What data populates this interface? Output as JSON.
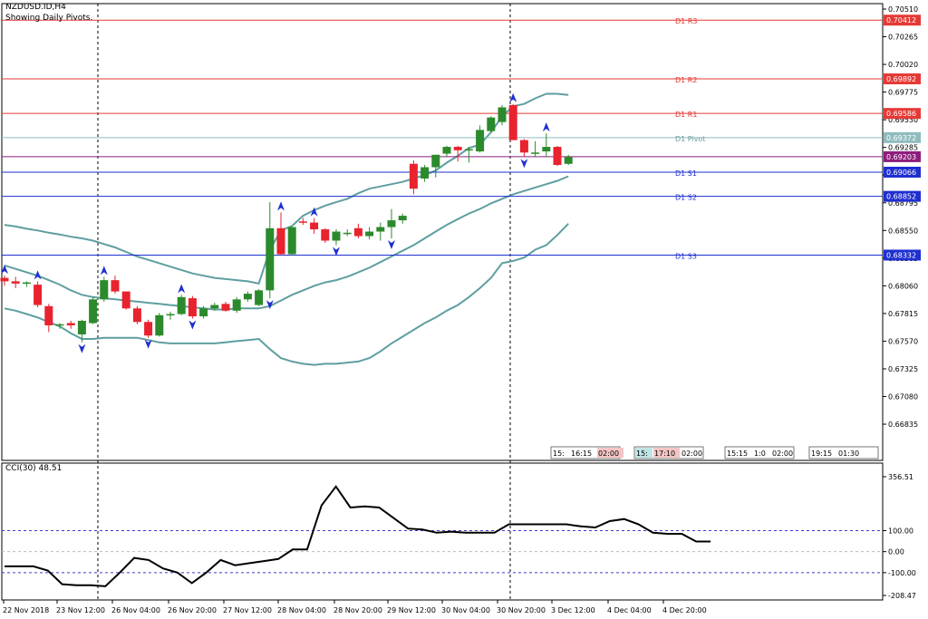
{
  "header": {
    "symbol": "NZDUSD.ID,H4",
    "subtitle": "Showing Daily Pivots."
  },
  "indicator": {
    "title": "CCI(30) 48.51"
  },
  "time_labels": [
    "22 Nov 2018",
    "23 Nov 12:00",
    "26 Nov 04:00",
    "26 Nov 20:00",
    "27 Nov 12:00",
    "28 Nov 04:00",
    "28 Nov 20:00",
    "29 Nov 12:00",
    "30 Nov 04:00",
    "30 Nov 20:00",
    "3 Dec 12:00",
    "4 Dec 04:00",
    "4 Dec 20:00"
  ],
  "session_boxes": [
    {
      "a": "15:",
      "b": "16:15",
      "c": "02:00"
    },
    {
      "a": "15:",
      "b": "17:10",
      "c": "02:00"
    },
    {
      "a": "15:15",
      "b": "1:0",
      "c": "02:00"
    },
    {
      "a": "19:15",
      "b": "01:30",
      "c": ""
    }
  ],
  "colors": {
    "bull": "#2b8a2b",
    "bear": "#e8232e",
    "band": "#5f9ea0",
    "resistance": "#e53935",
    "support": "#1f2fd0",
    "pivot": "#8fbcbf",
    "current": "#8e1d7c",
    "cci": "#000000"
  },
  "chart_data": [
    {
      "type": "candlestick",
      "title": "NZDUSD.ID,H4",
      "subtitle": "Showing Daily Pivots.",
      "ylim": [
        0.66683,
        0.7051
      ],
      "yticks": [
        "0.70510",
        "0.70265",
        "0.70020",
        "0.69775",
        "0.69530",
        "0.69285",
        "0.69040",
        "0.68795",
        "0.68550",
        "0.68305",
        "0.68060",
        "0.67815",
        "0.67570",
        "0.67325",
        "0.67080",
        "0.66835"
      ],
      "levels": [
        {
          "name": "D1 R3",
          "value": 0.70412,
          "label": "0.70412",
          "kind": "resistance"
        },
        {
          "name": "D1 R2",
          "value": 0.69892,
          "label": "0.69892",
          "kind": "resistance"
        },
        {
          "name": "D1 R1",
          "value": 0.69586,
          "label": "0.69586",
          "kind": "resistance"
        },
        {
          "name": "D1 Pivot",
          "value": 0.69372,
          "label": "0.69372",
          "kind": "pivot"
        },
        {
          "name": "",
          "value": 0.69203,
          "label": "0.69203",
          "kind": "current"
        },
        {
          "name": "D1 S1",
          "value": 0.69066,
          "label": "0.69066",
          "kind": "support"
        },
        {
          "name": "D1 S2",
          "value": 0.68852,
          "label": "0.68852",
          "kind": "support"
        },
        {
          "name": "D1 S3",
          "value": 0.68332,
          "label": "0.68332",
          "kind": "support"
        }
      ],
      "candles": [
        [
          0.6813,
          0.6815,
          0.6806,
          0.681
        ],
        [
          0.681,
          0.6814,
          0.6804,
          0.6808
        ],
        [
          0.6808,
          0.681,
          0.6805,
          0.6809
        ],
        [
          0.6807,
          0.681,
          0.6787,
          0.6789
        ],
        [
          0.6788,
          0.679,
          0.6765,
          0.6771
        ],
        [
          0.6771,
          0.6773,
          0.6768,
          0.6772
        ],
        [
          0.6773,
          0.6775,
          0.6768,
          0.6771
        ],
        [
          0.6763,
          0.6776,
          0.6756,
          0.6775
        ],
        [
          0.6773,
          0.6796,
          0.6772,
          0.6794
        ],
        [
          0.6794,
          0.6814,
          0.6792,
          0.6811
        ],
        [
          0.6811,
          0.6815,
          0.6799,
          0.6801
        ],
        [
          0.6801,
          0.6801,
          0.6785,
          0.6786
        ],
        [
          0.6786,
          0.6788,
          0.6772,
          0.6774
        ],
        [
          0.6774,
          0.6776,
          0.676,
          0.6762
        ],
        [
          0.6762,
          0.6782,
          0.6761,
          0.678
        ],
        [
          0.678,
          0.6783,
          0.6776,
          0.6781
        ],
        [
          0.6781,
          0.6798,
          0.678,
          0.6796
        ],
        [
          0.6795,
          0.6797,
          0.6777,
          0.6779
        ],
        [
          0.6779,
          0.6788,
          0.6777,
          0.6786
        ],
        [
          0.6786,
          0.6791,
          0.6784,
          0.6789
        ],
        [
          0.679,
          0.6792,
          0.6783,
          0.6784
        ],
        [
          0.6784,
          0.6796,
          0.6782,
          0.6794
        ],
        [
          0.6794,
          0.6801,
          0.6792,
          0.6799
        ],
        [
          0.6789,
          0.6803,
          0.6788,
          0.6802
        ],
        [
          0.6802,
          0.688,
          0.6795,
          0.6857
        ],
        [
          0.6857,
          0.6871,
          0.6833,
          0.6834
        ],
        [
          0.6834,
          0.6858,
          0.6833,
          0.6858
        ],
        [
          0.6863,
          0.6866,
          0.686,
          0.6862
        ],
        [
          0.6862,
          0.6866,
          0.6852,
          0.6856
        ],
        [
          0.6856,
          0.6857,
          0.6844,
          0.6846
        ],
        [
          0.6846,
          0.6856,
          0.6842,
          0.6854
        ],
        [
          0.6853,
          0.6856,
          0.685,
          0.6853
        ],
        [
          0.6857,
          0.6861,
          0.6848,
          0.685
        ],
        [
          0.685,
          0.6858,
          0.6847,
          0.6854
        ],
        [
          0.6854,
          0.6862,
          0.6846,
          0.6858
        ],
        [
          0.6858,
          0.6874,
          0.6848,
          0.6864
        ],
        [
          0.6864,
          0.687,
          0.6861,
          0.6868
        ],
        [
          0.6914,
          0.6917,
          0.6887,
          0.6892
        ],
        [
          0.6901,
          0.6913,
          0.6898,
          0.6911
        ],
        [
          0.6911,
          0.6922,
          0.6902,
          0.6922
        ],
        [
          0.6923,
          0.693,
          0.692,
          0.6929
        ],
        [
          0.6929,
          0.693,
          0.6916,
          0.6926
        ],
        [
          0.6926,
          0.6929,
          0.6915,
          0.6927
        ],
        [
          0.6925,
          0.6948,
          0.6924,
          0.6944
        ],
        [
          0.6943,
          0.6956,
          0.6942,
          0.6955
        ],
        [
          0.6951,
          0.6966,
          0.6948,
          0.6964
        ],
        [
          0.6966,
          0.6967,
          0.6935,
          0.6935
        ],
        [
          0.6935,
          0.6936,
          0.692,
          0.6924
        ],
        [
          0.6924,
          0.6934,
          0.692,
          0.6924
        ],
        [
          0.6925,
          0.6941,
          0.692,
          0.6929
        ],
        [
          0.6929,
          0.693,
          0.6912,
          0.6913
        ],
        [
          0.6914,
          0.6922,
          0.6913,
          0.692
        ]
      ],
      "bands": {
        "upper": [
          0.686,
          0.68585,
          0.68565,
          0.6855,
          0.6853,
          0.68515,
          0.68495,
          0.6848,
          0.6846,
          0.6843,
          0.684,
          0.6836,
          0.6832,
          0.6829,
          0.6826,
          0.6823,
          0.682,
          0.6817,
          0.6815,
          0.6813,
          0.6812,
          0.6811,
          0.681,
          0.6808,
          0.6838,
          0.6855,
          0.6859,
          0.6868,
          0.6873,
          0.6877,
          0.688,
          0.6883,
          0.6888,
          0.6892,
          0.6894,
          0.6896,
          0.6898,
          0.6901,
          0.6904,
          0.6908,
          0.6915,
          0.6921,
          0.6928,
          0.6931,
          0.6942,
          0.6956,
          0.6965,
          0.6967,
          0.6972,
          0.6976,
          0.6976,
          0.6975
        ],
        "middle": [
          0.6824,
          0.6821,
          0.6818,
          0.6815,
          0.6811,
          0.6807,
          0.6802,
          0.6798,
          0.6796,
          0.6795,
          0.6794,
          0.6793,
          0.6792,
          0.6791,
          0.679,
          0.6789,
          0.6788,
          0.6787,
          0.6786,
          0.6785,
          0.6785,
          0.6786,
          0.6786,
          0.6786,
          0.6788,
          0.6793,
          0.6798,
          0.6802,
          0.6806,
          0.6809,
          0.6811,
          0.6814,
          0.6818,
          0.6822,
          0.6827,
          0.6832,
          0.6837,
          0.6842,
          0.6848,
          0.6854,
          0.686,
          0.6865,
          0.687,
          0.6874,
          0.6879,
          0.6883,
          0.6887,
          0.689,
          0.6893,
          0.6896,
          0.6899,
          0.6903
        ],
        "lower": [
          0.6786,
          0.6784,
          0.6781,
          0.6778,
          0.6774,
          0.677,
          0.6764,
          0.6759,
          0.6759,
          0.676,
          0.676,
          0.676,
          0.676,
          0.6758,
          0.6756,
          0.6755,
          0.6755,
          0.6755,
          0.6755,
          0.6755,
          0.6756,
          0.6757,
          0.6758,
          0.6759,
          0.675,
          0.6742,
          0.6739,
          0.6737,
          0.6736,
          0.6737,
          0.6737,
          0.6738,
          0.6739,
          0.6742,
          0.6748,
          0.6755,
          0.6761,
          0.6767,
          0.6773,
          0.6778,
          0.6784,
          0.6789,
          0.6796,
          0.6804,
          0.6813,
          0.6826,
          0.6828,
          0.6831,
          0.6838,
          0.6842,
          0.6851,
          0.6861
        ],
        "upper_start": 0,
        "lower_end": 51
      },
      "fractals": {
        "up": [
          0,
          3,
          9,
          16,
          25,
          28,
          46,
          49
        ],
        "down": [
          7,
          13,
          17,
          24,
          30,
          35,
          47
        ]
      }
    },
    {
      "type": "line",
      "title": "CCI(30) 48.51",
      "ylim": [
        -208.47,
        356.51
      ],
      "yticks": [
        "356.51",
        "100.00",
        "0.00",
        "-100.00",
        "-208.47"
      ],
      "levels": [
        100,
        0,
        -100
      ],
      "values": [
        -70,
        -70,
        -70,
        -90,
        -155,
        -160,
        -160,
        -165,
        -100,
        -30,
        -40,
        -80,
        -100,
        -150,
        -100,
        -40,
        -65,
        -55,
        -45,
        -35,
        10,
        10,
        220,
        310,
        210,
        215,
        210,
        160,
        110,
        105,
        90,
        95,
        90,
        90,
        90,
        130,
        130,
        130,
        130,
        130,
        120,
        115,
        145,
        155,
        130,
        90,
        85,
        85,
        48,
        48
      ]
    }
  ]
}
